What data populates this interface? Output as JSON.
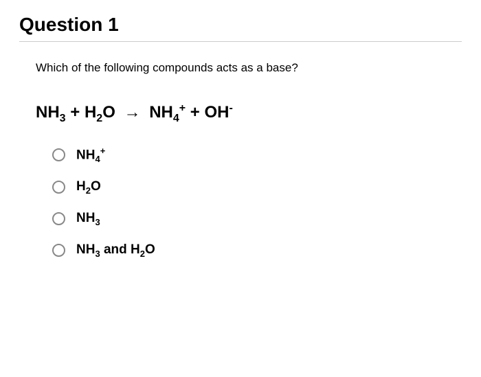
{
  "question": {
    "title": "Question 1",
    "prompt": "Which of the following compounds acts as a base?",
    "equation": {
      "reactant1": "NH",
      "reactant1_sub": "3",
      "plus1": " + ",
      "reactant2": "H",
      "reactant2_sub": "2",
      "reactant2b": "O",
      "arrow": "→",
      "product1": "NH",
      "product1_sub": "4",
      "product1_sup": "+",
      "plus2": " + ",
      "product2": "OH",
      "product2_sup": "-"
    },
    "options": [
      {
        "id": "opt-nh4",
        "html_parts": [
          "NH",
          "4",
          "+"
        ],
        "type": "formula_sub_sup"
      },
      {
        "id": "opt-h2o",
        "html_parts": [
          "H",
          "2",
          "O"
        ],
        "type": "formula_sub"
      },
      {
        "id": "opt-nh3",
        "html_parts": [
          "NH",
          "3"
        ],
        "type": "formula_sub_only"
      },
      {
        "id": "opt-both",
        "html_parts": [
          "NH",
          "3",
          " and  H",
          "2",
          "O"
        ],
        "type": "formula_double"
      }
    ]
  },
  "styling": {
    "title_fontsize": 28,
    "prompt_fontsize": 17,
    "equation_fontsize": 24,
    "option_fontsize": 19,
    "text_color": "#000000",
    "divider_color": "#cccccc",
    "radio_border_color": "#888888",
    "background_color": "#ffffff"
  }
}
